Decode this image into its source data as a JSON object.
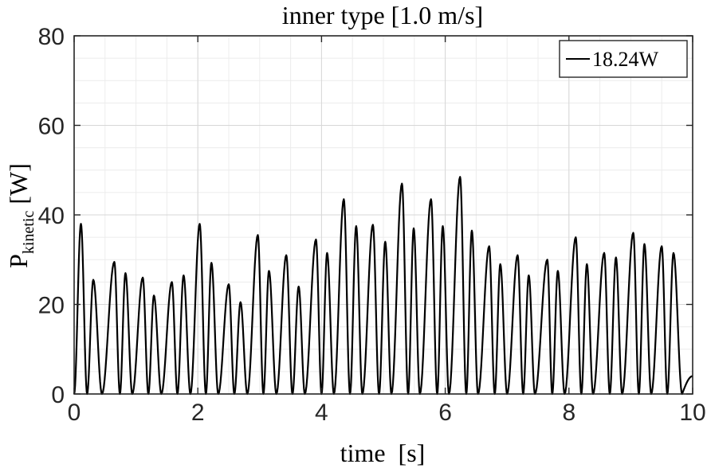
{
  "chart_data": {
    "type": "line",
    "title": "inner type [1.0 m/s]",
    "xlabel": "time  [s]",
    "ylabel_main": "P",
    "ylabel_sub": "kinetic",
    "ylabel_unit": "[W]",
    "xlim": [
      0,
      10
    ],
    "ylim": [
      0,
      80
    ],
    "xticks": [
      0,
      2,
      4,
      6,
      8,
      10
    ],
    "yticks": [
      0,
      20,
      40,
      60,
      80
    ],
    "xtick_labels": [
      "0",
      "2",
      "4",
      "6",
      "8",
      "10"
    ],
    "ytick_labels": [
      "0",
      "20",
      "40",
      "60",
      "80"
    ],
    "grid": true,
    "minor_grid": true,
    "legend": {
      "position": "top-right",
      "label": "18.24W"
    },
    "line_color": "#000000",
    "peaks": [
      [
        0.11,
        38.0
      ],
      [
        0.31,
        25.5
      ],
      [
        0.65,
        29.5
      ],
      [
        0.83,
        27.0
      ],
      [
        1.11,
        26.0
      ],
      [
        1.29,
        22.0
      ],
      [
        1.58,
        25.0
      ],
      [
        1.77,
        26.5
      ],
      [
        2.03,
        38.0
      ],
      [
        2.22,
        29.3
      ],
      [
        2.5,
        24.5
      ],
      [
        2.69,
        20.5
      ],
      [
        2.97,
        35.5
      ],
      [
        3.15,
        27.5
      ],
      [
        3.43,
        31.0
      ],
      [
        3.63,
        24.0
      ],
      [
        3.91,
        34.5
      ],
      [
        4.09,
        31.5
      ],
      [
        4.36,
        43.5
      ],
      [
        4.56,
        37.5
      ],
      [
        4.83,
        37.8
      ],
      [
        5.03,
        34.0
      ],
      [
        5.3,
        47.0
      ],
      [
        5.49,
        37.0
      ],
      [
        5.77,
        43.5
      ],
      [
        5.96,
        37.5
      ],
      [
        6.24,
        48.5
      ],
      [
        6.43,
        36.5
      ],
      [
        6.71,
        33.0
      ],
      [
        6.89,
        29.0
      ],
      [
        7.17,
        31.0
      ],
      [
        7.35,
        26.5
      ],
      [
        7.65,
        30.0
      ],
      [
        7.82,
        27.5
      ],
      [
        8.11,
        35.0
      ],
      [
        8.29,
        29.0
      ],
      [
        8.57,
        31.5
      ],
      [
        8.76,
        30.5
      ],
      [
        9.04,
        36.0
      ],
      [
        9.22,
        33.5
      ],
      [
        9.5,
        33.0
      ],
      [
        9.69,
        31.5
      ]
    ],
    "troughs": [
      0.0,
      0.21,
      0.45,
      0.74,
      0.94,
      1.2,
      1.41,
      1.67,
      1.88,
      2.13,
      2.33,
      2.59,
      2.8,
      3.06,
      3.27,
      3.53,
      3.73,
      4.0,
      4.2,
      4.46,
      4.66,
      4.93,
      5.13,
      5.4,
      5.59,
      5.87,
      6.06,
      6.34,
      6.53,
      6.8,
      7.0,
      7.26,
      7.45,
      7.73,
      7.93,
      8.2,
      8.39,
      8.66,
      8.86,
      9.13,
      9.33,
      9.59,
      9.83
    ],
    "end_point": [
      10.0,
      4.0
    ]
  }
}
